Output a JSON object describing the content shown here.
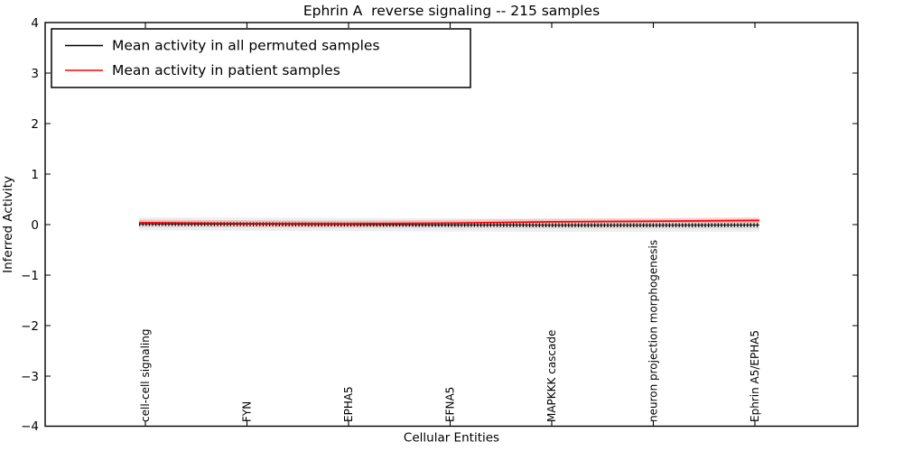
{
  "chart_data": {
    "type": "line",
    "title": "Ephrin A  reverse signaling -- 215 samples",
    "xlabel": "Cellular Entities",
    "ylabel": "Inferred Activity",
    "ylim": [
      -4,
      4
    ],
    "y_ticks": [
      4,
      3,
      2,
      1,
      0,
      -1,
      -2,
      -3,
      -4
    ],
    "y_tick_labels": [
      "4",
      "3",
      "2",
      "1",
      "0",
      "−1",
      "−2",
      "−3",
      "−4"
    ],
    "categories": [
      "cell-cell signaling",
      "FYN",
      "EPHA5",
      "EFNA5",
      "MAPKKK cascade",
      "neuron projection morphogenesis",
      "Ephrin A5/EPHA5"
    ],
    "series": [
      {
        "name": "Mean activity in all permuted samples",
        "color": "#000000",
        "style": "solid line with dense error-bar caps and gray confidence band",
        "values": [
          0.01,
          0.003,
          -0.004,
          -0.01,
          -0.019,
          -0.019,
          -0.015
        ],
        "band_halfwidth": 0.13
      },
      {
        "name": "Mean activity in patient samples",
        "color": "#ff0000",
        "style": "solid line with faint red halo",
        "values": [
          0.031,
          0.017,
          0.013,
          0.026,
          0.051,
          0.062,
          0.078
        ]
      }
    ],
    "legend_position": "upper left",
    "grid": false
  },
  "legend": {
    "items": [
      {
        "label": "Mean activity in all permuted samples",
        "color": "#000000"
      },
      {
        "label": "Mean activity in patient samples",
        "color": "#ff0000"
      }
    ]
  }
}
